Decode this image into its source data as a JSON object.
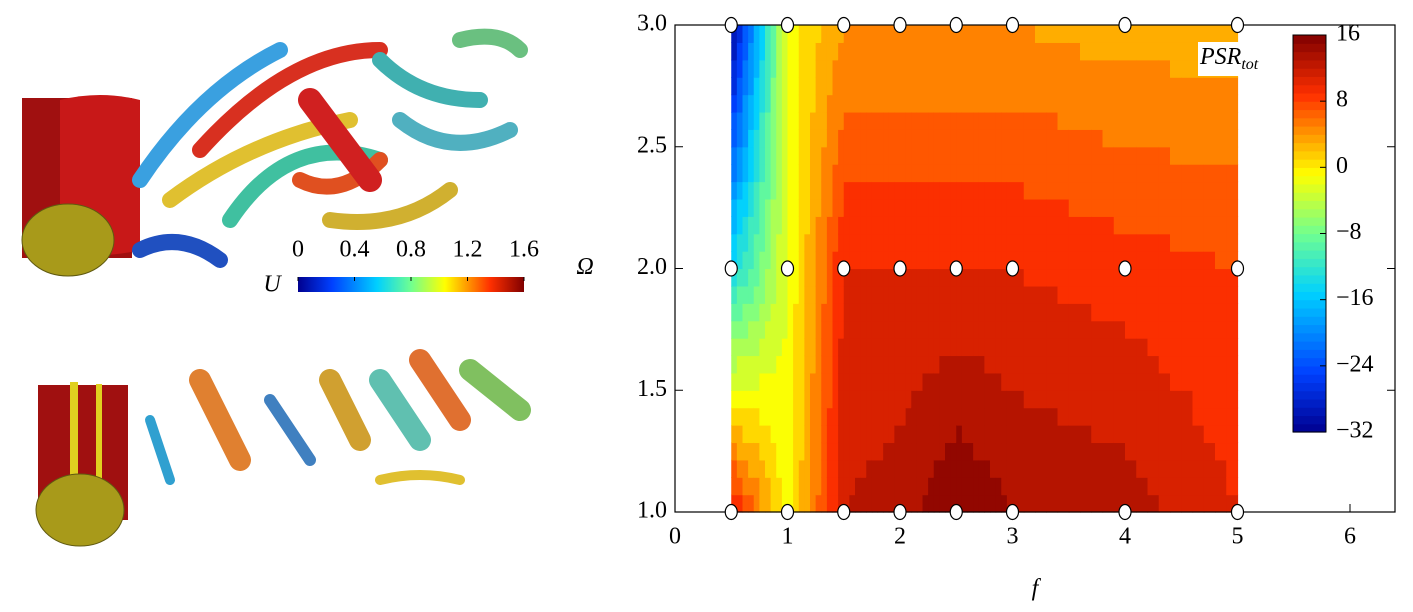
{
  "chart_data": [
    {
      "type": "colorbar",
      "label": "U",
      "lim": [
        0,
        1.6
      ],
      "ticks": [
        0,
        0.4,
        0.8,
        1.2,
        1.6
      ]
    },
    {
      "type": "contour",
      "xlabel": "f",
      "ylabel": "Ω",
      "colorbar_label": "PSR",
      "colorbar_label_sub": "tot",
      "x": [
        0.5,
        1,
        1.5,
        2,
        2.5,
        3,
        4,
        5
      ],
      "y": [
        1,
        2,
        3
      ],
      "z": [
        [
          11,
          -1,
          12,
          13,
          16,
          14,
          13,
          10
        ],
        [
          -14,
          -2,
          10,
          10,
          10,
          10,
          9,
          8
        ],
        [
          -32,
          -1,
          4,
          4,
          4,
          4,
          3,
          3
        ]
      ],
      "xlim": [
        0,
        6.4
      ],
      "ylim": [
        1,
        3
      ],
      "xticks": [
        0,
        1,
        2,
        3,
        4,
        5,
        6
      ],
      "yticks": [
        {
          "value": 1,
          "label": "1.0"
        },
        {
          "value": 1.5,
          "label": "1.5"
        },
        {
          "value": 2,
          "label": "2.0"
        },
        {
          "value": 2.5,
          "label": "2.5"
        },
        {
          "value": 3,
          "label": "3.0"
        }
      ],
      "zlim": [
        -32,
        16
      ],
      "zticks": [
        {
          "value": 16,
          "label": "16"
        },
        {
          "value": 8,
          "label": "8"
        },
        {
          "value": 0,
          "label": "0"
        },
        {
          "value": -8,
          "label": "−8"
        },
        {
          "value": -16,
          "label": "−16"
        },
        {
          "value": -24,
          "label": "−24"
        },
        {
          "value": -32,
          "label": "−32"
        }
      ]
    }
  ]
}
